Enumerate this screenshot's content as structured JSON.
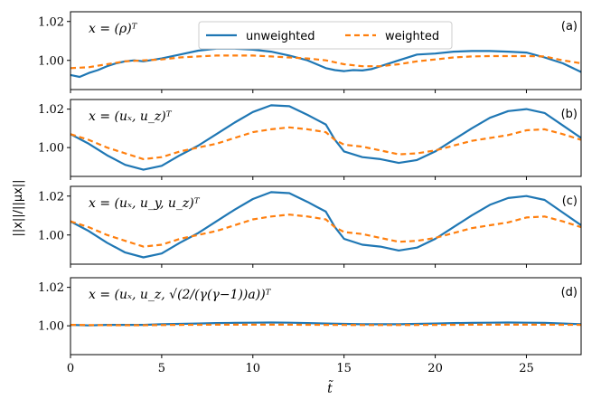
{
  "chart_data": {
    "type": "line",
    "xlabel": "t̃",
    "ylabel": "||x||/||μx||",
    "xlim": [
      0,
      28
    ],
    "ylim": [
      0.985,
      1.025
    ],
    "x_ticks": [
      "0",
      "5",
      "10",
      "15",
      "20",
      "25"
    ],
    "y_ticks": [
      "1.00",
      "1.02"
    ],
    "legend": [
      {
        "name": "unweighted",
        "color": "#1f77b4",
        "style": "solid"
      },
      {
        "name": "weighted",
        "color": "#ff7f0e",
        "style": "dashed"
      }
    ],
    "panels": [
      {
        "tag": "(a)",
        "expression": "x = (ρ)ᵀ",
        "series": [
          {
            "name": "unweighted",
            "x": [
              0,
              0.5,
              1,
              1.5,
              2,
              2.5,
              3,
              3.5,
              4,
              5,
              6,
              7,
              8,
              9,
              10,
              11,
              12,
              13,
              14,
              14.5,
              15,
              15.5,
              16,
              16.5,
              17,
              18,
              19,
              20,
              21,
              22,
              23,
              24,
              25,
              26,
              27,
              28
            ],
            "y": [
              0.9925,
              0.9915,
              0.9935,
              0.995,
              0.997,
              0.9985,
              0.9995,
              1.0,
              0.9995,
              1.001,
              1.003,
              1.005,
              1.006,
              1.006,
              1.0055,
              1.0045,
              1.0025,
              1.0,
              0.996,
              0.995,
              0.9945,
              0.995,
              0.9948,
              0.9955,
              0.997,
              1.0,
              1.003,
              1.0035,
              1.0045,
              1.0048,
              1.0048,
              1.0045,
              1.004,
              1.0015,
              0.9985,
              0.994
            ]
          },
          {
            "name": "weighted",
            "x": [
              0,
              1,
              2,
              3,
              4,
              5,
              6,
              7,
              8,
              9,
              10,
              11,
              12,
              13,
              14,
              15,
              16,
              17,
              18,
              19,
              20,
              21,
              22,
              23,
              24,
              25,
              26,
              27,
              28
            ],
            "y": [
              0.996,
              0.9965,
              0.998,
              0.9995,
              1.0,
              1.0005,
              1.0015,
              1.002,
              1.0025,
              1.0025,
              1.0025,
              1.002,
              1.0015,
              1.001,
              1.0,
              0.998,
              0.997,
              0.997,
              0.998,
              0.9995,
              1.0005,
              1.0015,
              1.002,
              1.0022,
              1.0022,
              1.0022,
              1.002,
              1.0,
              0.9985
            ]
          }
        ]
      },
      {
        "tag": "(b)",
        "expression": "x = (uₓ, u_z)ᵀ",
        "series": [
          {
            "name": "unweighted",
            "x": [
              0,
              1,
              2,
              3,
              4,
              5,
              6,
              7,
              8,
              9,
              10,
              11,
              12,
              13,
              13.5,
              14,
              14.5,
              15,
              16,
              17,
              18,
              19,
              20,
              21,
              22,
              23,
              24,
              25,
              26,
              27,
              28
            ],
            "y": [
              1.007,
              1.002,
              0.996,
              0.991,
              0.9885,
              0.9905,
              0.996,
              1.001,
              1.007,
              1.013,
              1.0185,
              1.022,
              1.0215,
              1.017,
              1.0145,
              1.012,
              1.004,
              0.998,
              0.995,
              0.994,
              0.992,
              0.9935,
              0.998,
              1.004,
              1.01,
              1.0155,
              1.019,
              1.02,
              1.018,
              1.0115,
              1.005
            ]
          },
          {
            "name": "weighted",
            "x": [
              0,
              1,
              2,
              3,
              4,
              5,
              6,
              7,
              8,
              9,
              10,
              11,
              12,
              13,
              14,
              14.5,
              15,
              16,
              17,
              18,
              19,
              20,
              21,
              22,
              23,
              24,
              25,
              26,
              27,
              28
            ],
            "y": [
              1.007,
              1.004,
              1.0,
              0.997,
              0.994,
              0.995,
              0.998,
              1.0,
              1.002,
              1.005,
              1.008,
              1.0095,
              1.0105,
              1.0095,
              1.008,
              1.004,
              1.0015,
              1.0005,
              0.9985,
              0.9965,
              0.997,
              0.9985,
              1.001,
              1.0035,
              1.005,
              1.0065,
              1.009,
              1.0095,
              1.007,
              1.004
            ]
          }
        ]
      },
      {
        "tag": "(c)",
        "expression": "x = (uₓ, u_y, u_z)ᵀ",
        "series": [
          {
            "name": "unweighted",
            "x": [
              0,
              1,
              2,
              3,
              4,
              5,
              6,
              7,
              8,
              9,
              10,
              11,
              12,
              13,
              13.5,
              14,
              14.5,
              15,
              16,
              17,
              18,
              19,
              20,
              21,
              22,
              23,
              24,
              25,
              26,
              27,
              28
            ],
            "y": [
              1.007,
              1.002,
              0.996,
              0.991,
              0.9885,
              0.9905,
              0.996,
              1.001,
              1.007,
              1.013,
              1.0185,
              1.022,
              1.0215,
              1.017,
              1.0145,
              1.012,
              1.004,
              0.998,
              0.995,
              0.994,
              0.992,
              0.9935,
              0.998,
              1.004,
              1.01,
              1.0155,
              1.019,
              1.02,
              1.018,
              1.0115,
              1.005
            ]
          },
          {
            "name": "weighted",
            "x": [
              0,
              1,
              2,
              3,
              4,
              5,
              6,
              7,
              8,
              9,
              10,
              11,
              12,
              13,
              14,
              14.5,
              15,
              16,
              17,
              18,
              19,
              20,
              21,
              22,
              23,
              24,
              25,
              26,
              27,
              28
            ],
            "y": [
              1.007,
              1.004,
              1.0,
              0.997,
              0.994,
              0.995,
              0.998,
              1.0,
              1.002,
              1.005,
              1.008,
              1.0095,
              1.0105,
              1.0095,
              1.008,
              1.004,
              1.0015,
              1.0005,
              0.9985,
              0.9965,
              0.997,
              0.9985,
              1.001,
              1.0035,
              1.005,
              1.0065,
              1.009,
              1.0095,
              1.007,
              1.004
            ]
          }
        ]
      },
      {
        "tag": "(d)",
        "expression": "x = (uₓ, u_z, √(2/(γ(γ−1))a))ᵀ",
        "series": [
          {
            "name": "unweighted",
            "x": [
              0,
              1,
              2,
              3,
              4,
              5,
              6,
              7,
              8,
              9,
              10,
              11,
              12,
              13,
              14,
              15,
              16,
              17,
              18,
              19,
              20,
              21,
              22,
              23,
              24,
              25,
              26,
              27,
              28
            ],
            "y": [
              1.0005,
              1.0002,
              1.0005,
              1.0005,
              1.0005,
              1.0008,
              1.001,
              1.0012,
              1.0014,
              1.0015,
              1.0016,
              1.0017,
              1.0016,
              1.0014,
              1.0012,
              1.001,
              1.0008,
              1.0008,
              1.0008,
              1.001,
              1.0012,
              1.0014,
              1.0015,
              1.0016,
              1.0017,
              1.0016,
              1.0015,
              1.0012,
              1.0008
            ]
          },
          {
            "name": "weighted",
            "x": [
              0,
              2,
              4,
              6,
              8,
              10,
              12,
              14,
              16,
              18,
              20,
              22,
              24,
              26,
              28
            ],
            "y": [
              1.0005,
              1.0003,
              1.0003,
              1.0005,
              1.0006,
              1.0006,
              1.0006,
              1.0005,
              1.0004,
              1.0004,
              1.0005,
              1.0006,
              1.0006,
              1.0006,
              1.0005
            ]
          }
        ]
      }
    ]
  }
}
